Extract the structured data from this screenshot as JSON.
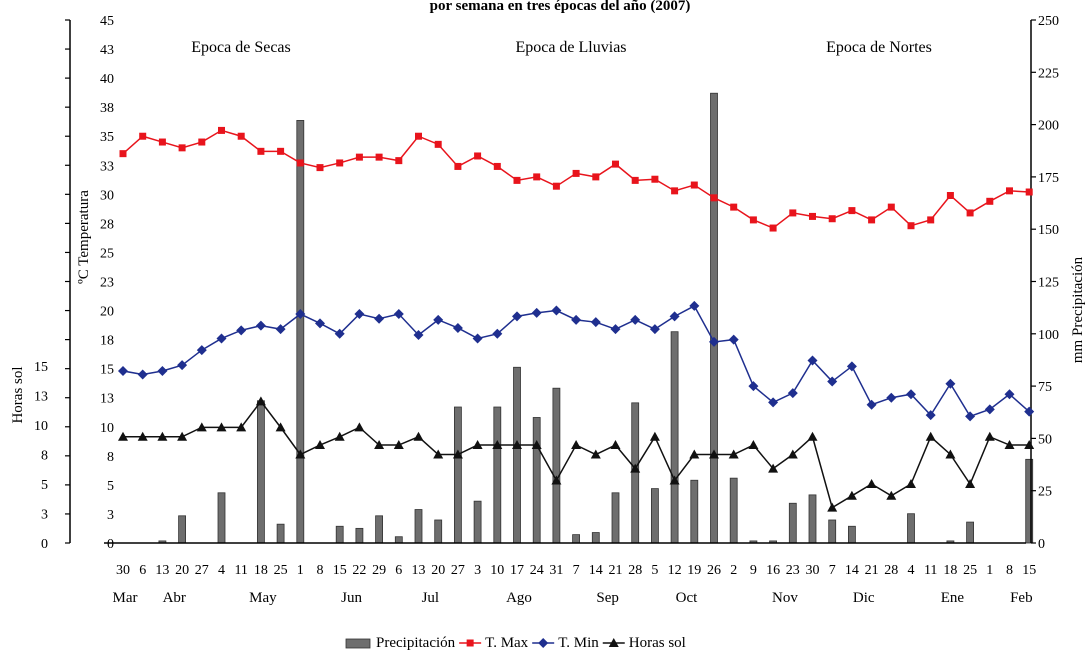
{
  "chart_data": {
    "type": "bar+line",
    "title": "por semana en tres épocas del año (2007)",
    "left_axis_label": "ºC Temperatura",
    "left_lower_axis_label": "Horas sol",
    "right_axis_label": "mm Precipitación",
    "left_axis_ticks": [
      "45",
      "43",
      "40",
      "38",
      "35",
      "33",
      "30",
      "28",
      "25",
      "23",
      "20",
      "18",
      "15",
      "13",
      "10",
      "8",
      "5",
      "3",
      "0"
    ],
    "left_lower_axis_ticks": [
      "15",
      "13",
      "10",
      "8",
      "5",
      "3",
      "0"
    ],
    "right_axis_ticks": [
      "250",
      "225",
      "200",
      "175",
      "150",
      "125",
      "100",
      "75",
      "50",
      "25",
      "0"
    ],
    "ylim_right": [
      0,
      250
    ],
    "ylim_temp": [
      0,
      45
    ],
    "ylim_sun": [
      0,
      15
    ],
    "seasons": [
      "Epoca de Secas",
      "Epoca de Lluvias",
      "Epoca de Nortes"
    ],
    "x_day_labels": [
      "30",
      "6",
      "13",
      "20",
      "27",
      "4",
      "11",
      "18",
      "25",
      "1",
      "8",
      "15",
      "22",
      "29",
      "6",
      "13",
      "20",
      "27",
      "3",
      "10",
      "17",
      "24",
      "31",
      "7",
      "14",
      "21",
      "28",
      "5",
      "12",
      "19",
      "26",
      "2",
      "9",
      "16",
      "23",
      "30",
      "7",
      "14",
      "21",
      "28",
      "4",
      "11",
      "18",
      "25",
      "1",
      "8",
      "15"
    ],
    "months": [
      {
        "label": "Mar",
        "week": 0
      },
      {
        "label": "Abr",
        "week": 2.5
      },
      {
        "label": "May",
        "week": 7
      },
      {
        "label": "Jun",
        "week": 11.5
      },
      {
        "label": "Jul",
        "week": 15.5
      },
      {
        "label": "Ago",
        "week": 20
      },
      {
        "label": "Sep",
        "week": 24.5
      },
      {
        "label": "Oct",
        "week": 28.5
      },
      {
        "label": "Nov",
        "week": 33.5
      },
      {
        "label": "Dic",
        "week": 37.5
      },
      {
        "label": "Ene",
        "week": 42
      },
      {
        "label": "Feb",
        "week": 45.5
      }
    ],
    "series": [
      {
        "name": "Precipitación",
        "type": "bar",
        "axis": "right",
        "color": "#6e6e6e",
        "values": [
          0,
          0,
          1,
          13,
          0,
          24,
          0,
          68,
          9,
          202,
          0,
          8,
          7,
          13,
          3,
          16,
          11,
          65,
          20,
          65,
          84,
          60,
          74,
          4,
          5,
          24,
          67,
          26,
          101,
          30,
          215,
          31,
          1,
          1,
          19,
          23,
          11,
          8,
          0,
          0,
          14,
          0,
          1,
          10,
          0,
          0,
          40
        ]
      },
      {
        "name": "T. Max",
        "type": "line",
        "axis": "temp",
        "color": "#e8141c",
        "marker": "square",
        "values": [
          33.5,
          35,
          34.5,
          34,
          34.5,
          35.5,
          35,
          33.7,
          33.7,
          32.7,
          32.3,
          32.7,
          33.2,
          33.2,
          32.9,
          35,
          34.3,
          32.4,
          33.3,
          32.4,
          31.2,
          31.5,
          30.7,
          31.8,
          31.5,
          32.6,
          31.2,
          31.3,
          30.3,
          30.8,
          29.7,
          28.9,
          27.8,
          27.1,
          28.4,
          28.1,
          27.9,
          28.6,
          27.8,
          28.9,
          27.3,
          27.8,
          29.9,
          28.4,
          29.4,
          30.3,
          30.2
        ]
      },
      {
        "name": "T. Min",
        "type": "line",
        "axis": "temp",
        "color": "#1f2f8f",
        "marker": "diamond",
        "values": [
          14.8,
          14.5,
          14.8,
          15.3,
          16.6,
          17.6,
          18.3,
          18.7,
          18.4,
          19.7,
          18.9,
          18,
          19.7,
          19.3,
          19.7,
          17.9,
          19.2,
          18.5,
          17.6,
          18,
          19.5,
          19.8,
          20,
          19.2,
          19,
          18.4,
          19.2,
          18.4,
          19.5,
          20.4,
          17.3,
          17.5,
          13.5,
          12.1,
          12.9,
          15.7,
          13.9,
          15.2,
          11.9,
          12.5,
          12.8,
          11,
          13.7,
          10.9,
          11.5,
          12.8,
          11.3
        ]
      },
      {
        "name": "Horas sol",
        "type": "line",
        "axis": "sun",
        "color": "#111111",
        "marker": "triangle",
        "values": [
          9,
          9,
          9,
          9,
          9.8,
          9.8,
          9.8,
          12,
          9.8,
          7.5,
          8.3,
          9,
          9.8,
          8.3,
          8.3,
          9,
          7.5,
          7.5,
          8.3,
          8.3,
          8.3,
          8.3,
          5.3,
          8.3,
          7.5,
          8.3,
          6.3,
          9,
          5.3,
          7.5,
          7.5,
          7.5,
          8.3,
          6.3,
          7.5,
          9,
          3,
          4,
          5,
          4,
          5,
          9,
          7.5,
          5,
          9,
          8.3,
          8.3
        ]
      }
    ],
    "legend": {
      "position": "bottom-center",
      "entries": [
        "Precipitación",
        "T. Max",
        "T. Min",
        "Horas sol"
      ]
    },
    "grid": false
  }
}
